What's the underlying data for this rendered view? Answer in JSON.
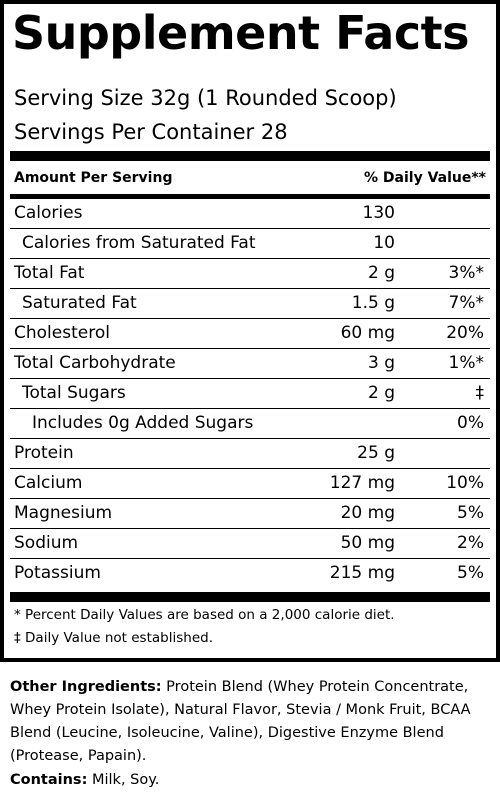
{
  "panel": {
    "title": "Supplement Facts",
    "serving_size": "Serving Size 32g (1 Rounded Scoop)",
    "servings_per_container": "Servings Per Container  28",
    "header_amount": "Amount Per Serving",
    "header_dv": "% Daily Value**"
  },
  "rows": [
    {
      "name": "Calories",
      "amount": "130",
      "dv": ""
    },
    {
      "name": "Calories from Saturated Fat",
      "amount": "10",
      "dv": ""
    },
    {
      "name": "Total Fat",
      "amount": "2 g",
      "dv": "3%*"
    },
    {
      "name": "Saturated Fat",
      "amount": "1.5 g",
      "dv": "7%*"
    },
    {
      "name": "Cholesterol",
      "amount": "60 mg",
      "dv": "20%"
    },
    {
      "name": "Total Carbohydrate",
      "amount": "3 g",
      "dv": "1%*"
    },
    {
      "name": "Total Sugars",
      "amount": "2 g",
      "dv": "‡"
    },
    {
      "name": "Includes 0g Added Sugars",
      "amount": "",
      "dv": "0%"
    },
    {
      "name": "Protein",
      "amount": "25 g",
      "dv": ""
    },
    {
      "name": "Calcium",
      "amount": "127 mg",
      "dv": "10%"
    },
    {
      "name": "Magnesium",
      "amount": "20 mg",
      "dv": "5%"
    },
    {
      "name": "Sodium",
      "amount": "50 mg",
      "dv": "2%"
    },
    {
      "name": "Potassium",
      "amount": "215 mg",
      "dv": "5%"
    }
  ],
  "footnotes": {
    "percent_note": "* Percent Daily Values are based on a 2,000 calorie diet.",
    "dv_note": "‡ Daily Value not established."
  },
  "ingredients": {
    "label": "Other Ingredients:",
    "text": " Protein Blend (Whey Protein Concentrate, Whey Protein Isolate), Natural Flavor, Stevia / Monk Fruit, BCAA Blend (Leucine, Isoleucine, Valine), Digestive Enzyme Blend (Protease, Papain)."
  },
  "contains": {
    "label": "Contains:",
    "text": " Milk, Soy."
  }
}
